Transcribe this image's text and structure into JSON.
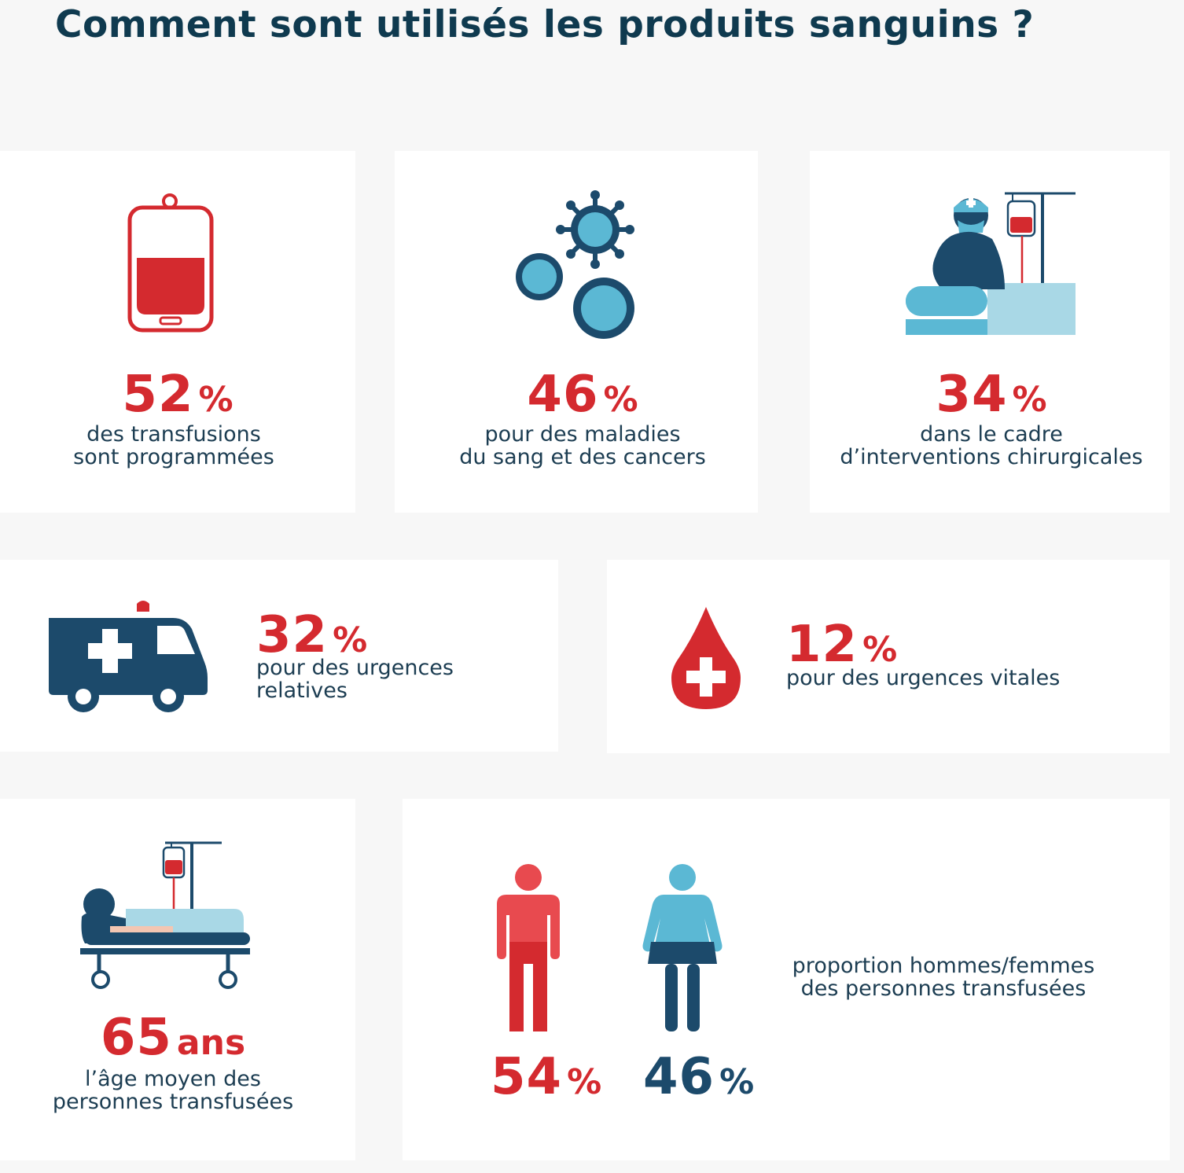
{
  "title": "Comment sont utilisés les produits sanguins ?",
  "colors": {
    "red": "#d42a2f",
    "navy": "#1c4a6b",
    "light_blue": "#5bb8d4",
    "pale_blue": "#a9d8e6",
    "background": "#f7f7f7"
  },
  "stats": [
    {
      "icon": "blood-bag-icon",
      "value": "52",
      "unit": "%",
      "line1": "des transfusions",
      "line2": "sont programmées"
    },
    {
      "icon": "blood-cells-icon",
      "value": "46",
      "unit": "%",
      "line1": "pour des maladies",
      "line2": "du sang et des cancers"
    },
    {
      "icon": "surgeon-icon",
      "value": "34",
      "unit": "%",
      "line1": "dans le cadre",
      "line2": "d’interventions chirurgicales"
    },
    {
      "icon": "ambulance-icon",
      "value": "32",
      "unit": "%",
      "line1": "pour des urgences",
      "line2": "relatives"
    },
    {
      "icon": "blood-drop-cross-icon",
      "value": "12",
      "unit": "%",
      "line1": "pour des urgences vitales"
    },
    {
      "icon": "patient-stretcher-icon",
      "value": "65",
      "unit": "ans",
      "line1": "l’âge moyen des",
      "line2": "personnes transfusées"
    }
  ],
  "gender": {
    "men": {
      "icon": "man-icon",
      "value": "54",
      "unit": "%"
    },
    "women": {
      "icon": "woman-icon",
      "value": "46",
      "unit": "%"
    },
    "line1": "proportion hommes/femmes",
    "line2": "des personnes transfusées"
  }
}
